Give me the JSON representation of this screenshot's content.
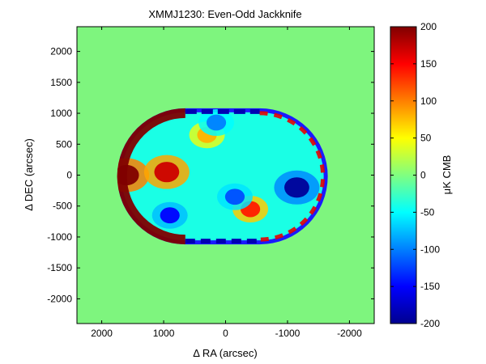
{
  "chart_data": {
    "type": "heatmap",
    "title": "XMMJ1230: Even-Odd Jackknife",
    "xlabel": "Δ RA (arcsec)",
    "ylabel": "Δ DEC (arcsec)",
    "colorbar_label": "μK CMB",
    "xlim": [
      2400,
      -2400
    ],
    "ylim": [
      -2400,
      2400
    ],
    "x_ticks": [
      2000,
      1000,
      0,
      -1000,
      -2000
    ],
    "x_tick_labels": [
      "2000",
      "1000",
      "0",
      "-1000",
      "-2000"
    ],
    "y_ticks": [
      2000,
      1500,
      1000,
      500,
      0,
      -500,
      -1000,
      -1500,
      -2000
    ],
    "y_tick_labels": [
      "2000",
      "1500",
      "1000",
      "500",
      "0",
      "-500",
      "-1000",
      "-1500",
      "-2000"
    ],
    "color_range": [
      -200,
      200
    ],
    "colorbar_ticks": [
      200,
      150,
      100,
      50,
      0,
      -50,
      -100,
      -150,
      -200
    ],
    "colorbar_tick_labels": [
      "200",
      "150",
      "100",
      "50",
      "0",
      "-50",
      "-100",
      "-150",
      "-200"
    ],
    "colormap": "jet",
    "background_value_uK": 0,
    "coverage_region": {
      "shape": "stadium",
      "ra_range": [
        1750,
        -1650
      ],
      "dec_range": [
        -1120,
        1080
      ]
    },
    "features": [
      {
        "description": "positive rim",
        "ra": 1600,
        "dec": 0,
        "value_uK": 200
      },
      {
        "description": "positive blob",
        "ra": 950,
        "dec": 50,
        "value_uK": 170
      },
      {
        "description": "positive blob",
        "ra": -400,
        "dec": -550,
        "value_uK": 140
      },
      {
        "description": "positive blob",
        "ra": 300,
        "dec": 650,
        "value_uK": 80
      },
      {
        "description": "negative blob",
        "ra": -1150,
        "dec": -200,
        "value_uK": -190
      },
      {
        "description": "negative blob",
        "ra": 900,
        "dec": -650,
        "value_uK": -150
      },
      {
        "description": "negative blob",
        "ra": -150,
        "dec": -350,
        "value_uK": -120
      },
      {
        "description": "negative blob",
        "ra": 150,
        "dec": 850,
        "value_uK": -100
      }
    ]
  }
}
